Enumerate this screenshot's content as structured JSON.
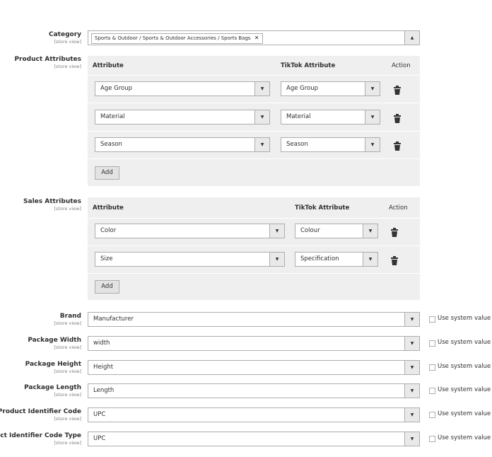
{
  "category": {
    "label": "Category",
    "scope": "[store view]",
    "chip": "Sports & Outdoor / Sports & Outdoor Accessories / Sports Bags",
    "chip_remove": "✕",
    "arrow": "▲"
  },
  "product_attributes": {
    "label": "Product Attributes",
    "scope": "[store view]",
    "headers": {
      "attribute": "Attribute",
      "tiktok": "TikTok Attribute",
      "action": "Action"
    },
    "rows": [
      {
        "attribute": "Age Group",
        "tiktok": "Age Group"
      },
      {
        "attribute": "Material",
        "tiktok": "Material"
      },
      {
        "attribute": "Season",
        "tiktok": "Season"
      }
    ],
    "add_label": "Add"
  },
  "sales_attributes": {
    "label": "Sales Attributes",
    "scope": "[store view]",
    "headers": {
      "attribute": "Attribute",
      "tiktok": "TikTok Attribute",
      "action": "Action"
    },
    "rows": [
      {
        "attribute": "Color",
        "tiktok": "Colour"
      },
      {
        "attribute": "Size",
        "tiktok": "Specification"
      }
    ],
    "add_label": "Add"
  },
  "fields": [
    {
      "label": "Brand",
      "scope": "[store view]",
      "value": "Manufacturer",
      "checkbox": "Use system value"
    },
    {
      "label": "Package Width",
      "scope": "[store view]",
      "value": "width",
      "checkbox": "Use system value"
    },
    {
      "label": "Package Height",
      "scope": "[store view]",
      "value": "Height",
      "checkbox": "Use system value"
    },
    {
      "label": "Package Length",
      "scope": "[store view]",
      "value": "Length",
      "checkbox": "Use system value"
    },
    {
      "label": "Product Identifier Code",
      "scope": "[store view]",
      "value": "UPC",
      "checkbox": "Use system value"
    },
    {
      "label": "Product Identifier Code Type",
      "scope": "[store view]",
      "value": "UPC",
      "checkbox": "Use system value"
    }
  ],
  "dropdown_arrow": "▼"
}
